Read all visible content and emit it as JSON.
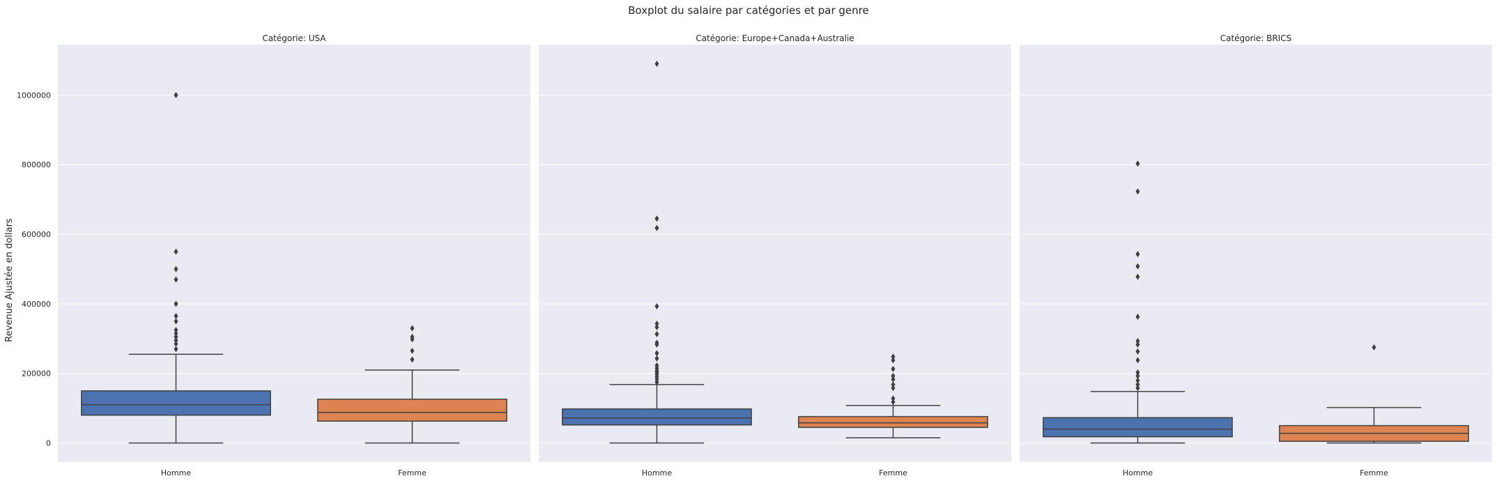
{
  "chart_data": {
    "type": "boxplot",
    "title": "Boxplot du salaire par catégories et par genre",
    "ylabel": "Revenue Ajustée en dollars",
    "ylim": [
      -55000,
      1145000
    ],
    "yticks": [
      0,
      200000,
      400000,
      600000,
      800000,
      1000000
    ],
    "ytick_labels": [
      "0",
      "200000",
      "400000",
      "600000",
      "800000",
      "1000000"
    ],
    "categories": [
      "Homme",
      "Femme"
    ],
    "grid": true,
    "colors": {
      "Homme": "#4c72b0",
      "Femme": "#dd8452",
      "background": "#eaeaf2",
      "line": "#3f3f3f"
    },
    "facets": [
      {
        "title": "Catégorie: USA",
        "boxes": [
          {
            "category": "Homme",
            "whisker_low": 0,
            "q1": 80000,
            "median": 110000,
            "q3": 150000,
            "whisker_high": 255000,
            "outliers": [
              1000000,
              550000,
              500000,
              470000,
              400000,
              365000,
              350000,
              325000,
              315000,
              305000,
              295000,
              285000,
              270000
            ]
          },
          {
            "category": "Femme",
            "whisker_low": 0,
            "q1": 63000,
            "median": 88000,
            "q3": 126000,
            "whisker_high": 210000,
            "outliers": [
              330000,
              305000,
              298000,
              265000,
              240000
            ]
          }
        ]
      },
      {
        "title": "Catégorie: Europe+Canada+Australie",
        "boxes": [
          {
            "category": "Homme",
            "whisker_low": 0,
            "q1": 52000,
            "median": 72000,
            "q3": 98000,
            "whisker_high": 168000,
            "outliers": [
              1090000,
              645000,
              618000,
              393000,
              343000,
              333000,
              313000,
              288000,
              283000,
              258000,
              243000,
              223000,
              215000,
              208000,
              203000,
              197000,
              190000,
              183000,
              175000
            ]
          },
          {
            "category": "Femme",
            "whisker_low": 15000,
            "q1": 45000,
            "median": 58000,
            "q3": 76000,
            "whisker_high": 108000,
            "outliers": [
              248000,
              238000,
              213000,
              193000,
              183000,
              168000,
              158000,
              128000,
              118000
            ]
          }
        ]
      },
      {
        "title": "Catégorie: BRICS",
        "boxes": [
          {
            "category": "Homme",
            "whisker_low": 0,
            "q1": 18000,
            "median": 40000,
            "q3": 73000,
            "whisker_high": 148000,
            "outliers": [
              803000,
              723000,
              543000,
              508000,
              478000,
              363000,
              293000,
              283000,
              263000,
              238000,
              203000,
              193000,
              180000,
              168000,
              158000
            ]
          },
          {
            "category": "Femme",
            "whisker_low": 0,
            "q1": 5000,
            "median": 28000,
            "q3": 50000,
            "whisker_high": 102000,
            "outliers": [
              275000
            ]
          }
        ]
      }
    ]
  }
}
